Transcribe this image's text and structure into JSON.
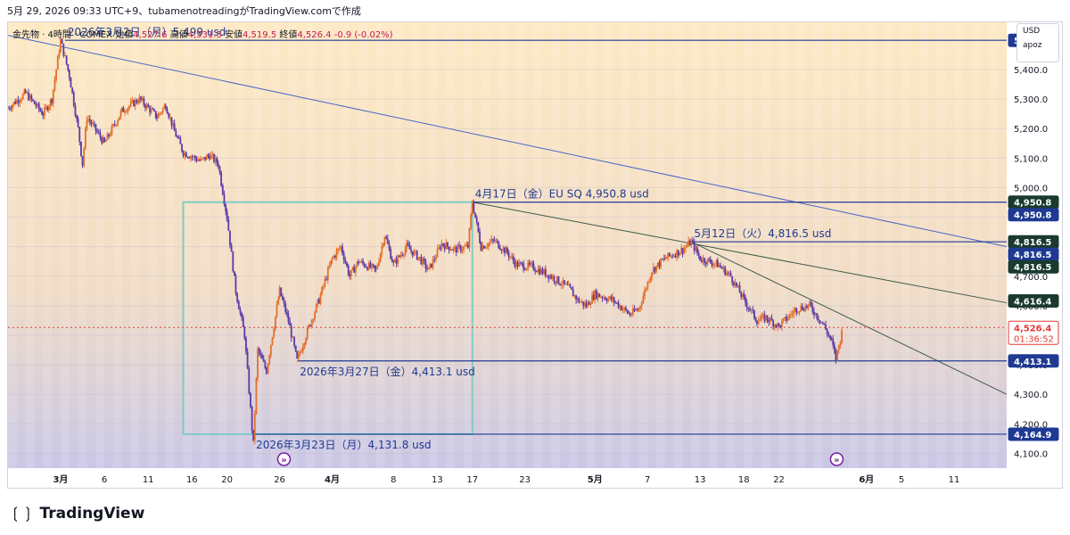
{
  "header": {
    "title": "5月 29, 2026 09:33 UTC+9、tubamenotreadingがTradingView.comで作成"
  },
  "info": {
    "symbol": "金先物 · 4時間 · COMEX",
    "open_label": "始値",
    "open": "4,527.6",
    "high_label": "高値",
    "high": "4,531.5",
    "low_label": "安値",
    "low": "4,519.5",
    "close_label": "終値",
    "close": "4,526.4",
    "change": "-0.9 (-0.02%)"
  },
  "legend": {
    "currency": "USD",
    "user": "apoz"
  },
  "footer": {
    "brand": "TradingView",
    "logo": "tradingview-logo-icon"
  },
  "colors": {
    "background_top": "#fde9c3",
    "background_bottom": "#c9c7e6",
    "accent": "#1f3a93",
    "up": "#e46f2a",
    "down": "#5c3aa8",
    "box": "#80cbc4"
  },
  "chart_data": {
    "type": "candlestick",
    "instrument": "金先物 COMEX",
    "timeframe": "4時間",
    "ylim": [
      4050,
      5560
    ],
    "y_ticks": [
      4100,
      4200,
      4300,
      4400,
      4500,
      4600,
      4700,
      4800,
      4900,
      5000,
      5100,
      5200,
      5300,
      5400
    ],
    "y_tick_labels": [
      "4,100.0",
      "4,200.0",
      "4,300.0",
      "4,400.0",
      "4,500.0",
      "4,600.0",
      "4,700.0",
      "4,800.0",
      "4,900.0",
      "5,000.0",
      "5,100.0",
      "5,200.0",
      "5,300.0",
      "5,400.0"
    ],
    "x_ticks": [
      {
        "day": 0,
        "label": "3月"
      },
      {
        "day": 5,
        "label": "6"
      },
      {
        "day": 10,
        "label": "11"
      },
      {
        "day": 15,
        "label": "16"
      },
      {
        "day": 19,
        "label": "20"
      },
      {
        "day": 25,
        "label": "26"
      },
      {
        "day": 31,
        "label": "4月"
      },
      {
        "day": 38,
        "label": "8"
      },
      {
        "day": 43,
        "label": "13"
      },
      {
        "day": 47,
        "label": "17"
      },
      {
        "day": 53,
        "label": "23"
      },
      {
        "day": 61,
        "label": "5月"
      },
      {
        "day": 67,
        "label": "7"
      },
      {
        "day": 73,
        "label": "13"
      },
      {
        "day": 78,
        "label": "18"
      },
      {
        "day": 82,
        "label": "22"
      },
      {
        "day": 92,
        "label": "6月"
      },
      {
        "day": 96,
        "label": "5"
      },
      {
        "day": 102,
        "label": "11"
      }
    ],
    "x_range_days": [
      -6,
      108
    ],
    "series": [
      {
        "type": "price_path",
        "points": [
          {
            "day": -6,
            "price": 5270
          },
          {
            "day": -4,
            "price": 5320
          },
          {
            "day": -2,
            "price": 5250
          },
          {
            "day": -1,
            "price": 5300
          },
          {
            "day": 0,
            "price": 5499
          },
          {
            "day": 1,
            "price": 5380
          },
          {
            "day": 2,
            "price": 5200
          },
          {
            "day": 2.5,
            "price": 5080
          },
          {
            "day": 3,
            "price": 5240
          },
          {
            "day": 5,
            "price": 5150
          },
          {
            "day": 7,
            "price": 5260
          },
          {
            "day": 9,
            "price": 5300
          },
          {
            "day": 11,
            "price": 5240
          },
          {
            "day": 12,
            "price": 5280
          },
          {
            "day": 13,
            "price": 5190
          },
          {
            "day": 14,
            "price": 5120
          },
          {
            "day": 16,
            "price": 5090
          },
          {
            "day": 17,
            "price": 5110
          },
          {
            "day": 18,
            "price": 5080
          },
          {
            "day": 19,
            "price": 4900
          },
          {
            "day": 20,
            "price": 4650
          },
          {
            "day": 21,
            "price": 4500
          },
          {
            "day": 22,
            "price": 4131.8
          },
          {
            "day": 22.5,
            "price": 4450
          },
          {
            "day": 23.5,
            "price": 4380
          },
          {
            "day": 25,
            "price": 4650
          },
          {
            "day": 26,
            "price": 4550
          },
          {
            "day": 27,
            "price": 4413.1
          },
          {
            "day": 28,
            "price": 4500
          },
          {
            "day": 29.5,
            "price": 4620
          },
          {
            "day": 31,
            "price": 4760
          },
          {
            "day": 32,
            "price": 4800
          },
          {
            "day": 33,
            "price": 4700
          },
          {
            "day": 34,
            "price": 4750
          },
          {
            "day": 36,
            "price": 4720
          },
          {
            "day": 37,
            "price": 4840
          },
          {
            "day": 38,
            "price": 4740
          },
          {
            "day": 39.5,
            "price": 4800
          },
          {
            "day": 41,
            "price": 4760
          },
          {
            "day": 42,
            "price": 4720
          },
          {
            "day": 43.5,
            "price": 4810
          },
          {
            "day": 45,
            "price": 4790
          },
          {
            "day": 46.5,
            "price": 4800
          },
          {
            "day": 47,
            "price": 4950.8
          },
          {
            "day": 48,
            "price": 4800
          },
          {
            "day": 49.5,
            "price": 4820
          },
          {
            "day": 51,
            "price": 4780
          },
          {
            "day": 52,
            "price": 4740
          },
          {
            "day": 54,
            "price": 4730
          },
          {
            "day": 56,
            "price": 4700
          },
          {
            "day": 58,
            "price": 4660
          },
          {
            "day": 59,
            "price": 4620
          },
          {
            "day": 60,
            "price": 4600
          },
          {
            "day": 61,
            "price": 4640
          },
          {
            "day": 63,
            "price": 4620
          },
          {
            "day": 65,
            "price": 4570
          },
          {
            "day": 66,
            "price": 4590
          },
          {
            "day": 67.5,
            "price": 4720
          },
          {
            "day": 69,
            "price": 4760
          },
          {
            "day": 71,
            "price": 4790
          },
          {
            "day": 72,
            "price": 4816.5
          },
          {
            "day": 73,
            "price": 4760
          },
          {
            "day": 75,
            "price": 4740
          },
          {
            "day": 76.5,
            "price": 4700
          },
          {
            "day": 78,
            "price": 4620
          },
          {
            "day": 79.5,
            "price": 4550
          },
          {
            "day": 80.5,
            "price": 4560
          },
          {
            "day": 82,
            "price": 4530
          },
          {
            "day": 84,
            "price": 4590
          },
          {
            "day": 85.5,
            "price": 4600
          },
          {
            "day": 87,
            "price": 4540
          },
          {
            "day": 88,
            "price": 4480
          },
          {
            "day": 88.5,
            "price": 4420
          },
          {
            "day": 89.3,
            "price": 4526.4
          }
        ]
      }
    ],
    "horizontal_lines": [
      {
        "price": 5499.0,
        "label": "5,499.0",
        "style": "box"
      },
      {
        "price": 4950.8,
        "label": "4,950.8",
        "style": "dark"
      },
      {
        "price": 4950.8,
        "label": "4,950.8",
        "style": "box"
      },
      {
        "price": 4816.5,
        "label": "4,816.5",
        "style": "dark"
      },
      {
        "price": 4816.5,
        "label": "4,816.5",
        "style": "box"
      },
      {
        "price": 4816.5,
        "label": "4,816.5",
        "style": "dark"
      },
      {
        "price": 4616.4,
        "label": "4,616.4",
        "style": "dark"
      },
      {
        "price": 4526.4,
        "label": "4,526.4",
        "style": "current",
        "sub": "01:36:52"
      },
      {
        "price": 4413.1,
        "label": "4,413.1",
        "style": "box"
      },
      {
        "price": 4164.9,
        "label": "4,164.9",
        "style": "box"
      }
    ],
    "trend_lines": [
      {
        "from": {
          "day": -6,
          "price": 5516
        },
        "to": {
          "day": 108,
          "price": 4800
        }
      },
      {
        "from": {
          "day": 47,
          "price": 4950.8
        },
        "to": {
          "day": 108,
          "price": 4610
        }
      },
      {
        "from": {
          "day": 72,
          "price": 4816.5
        },
        "to": {
          "day": 108,
          "price": 4300
        }
      }
    ],
    "rectangle": {
      "from_day": 14,
      "to_day": 47,
      "top": 4950.8,
      "bottom": 4164.9
    },
    "annotations": [
      {
        "text": "2026年3月2日（月）5,499 usd",
        "day": 0.5,
        "price": 5499
      },
      {
        "text": "4月17日（金）EU SQ  4,950.8 usd",
        "day": 47,
        "price": 4950.8
      },
      {
        "text": "5月12日（火）4,816.5 usd",
        "day": 72,
        "price": 4816.5
      },
      {
        "text": "2026年3月27日（金）4,413.1 usd",
        "day": 27,
        "price": 4413.1
      },
      {
        "text": "2026年3月23日（月）4,131.8 usd",
        "day": 22,
        "price": 4164.9
      }
    ]
  }
}
